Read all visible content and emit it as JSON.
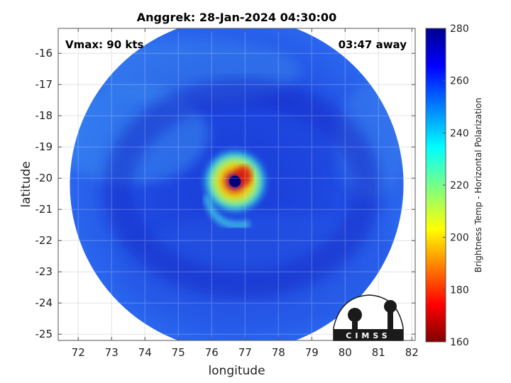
{
  "chart_data": {
    "type": "heatmap",
    "title": "Anggrek: 28-Jan-2024 04:30:00",
    "xlabel": "longitude",
    "ylabel": "latitude",
    "xlim": [
      71.4,
      82.1
    ],
    "ylim": [
      -25.2,
      -15.2
    ],
    "x_ticks": [
      72,
      73,
      74,
      75,
      76,
      77,
      78,
      79,
      80,
      81,
      82
    ],
    "x_tick_labels": [
      "72",
      "73",
      "74",
      "75",
      "76",
      "77",
      "78",
      "79",
      "80",
      "81",
      "82"
    ],
    "y_ticks": [
      -16,
      -17,
      -18,
      -19,
      -20,
      -21,
      -22,
      -23,
      -24,
      -25
    ],
    "y_tick_labels": [
      "-16",
      "-17",
      "-18",
      "-19",
      "-20",
      "-21",
      "-22",
      "-23",
      "-24",
      "-25"
    ],
    "grid": true,
    "annotations": {
      "vmax": "Vmax: 90 kts",
      "time_away": "03:47 away"
    },
    "storm_center": {
      "lon": 76.7,
      "lat": -20.1
    },
    "swath": {
      "center_lon": 76.75,
      "center_lat": -20.2,
      "radius_deg": 5.0
    },
    "colorbar": {
      "label": "Brightness Temp - Horizontal Polarization",
      "min": 160,
      "max": 280,
      "ticks": [
        280,
        260,
        240,
        220,
        200,
        180,
        160
      ],
      "tick_labels": [
        "280",
        "260",
        "240",
        "220",
        "200",
        "180",
        "160"
      ],
      "colormap": "jet"
    },
    "logo_text": "CIMSS"
  },
  "colors": {
    "background_min": "#1a3fd6",
    "eyewall_warm": "#e02010",
    "eye": "#00007a",
    "logo": "#1a1a1a"
  }
}
